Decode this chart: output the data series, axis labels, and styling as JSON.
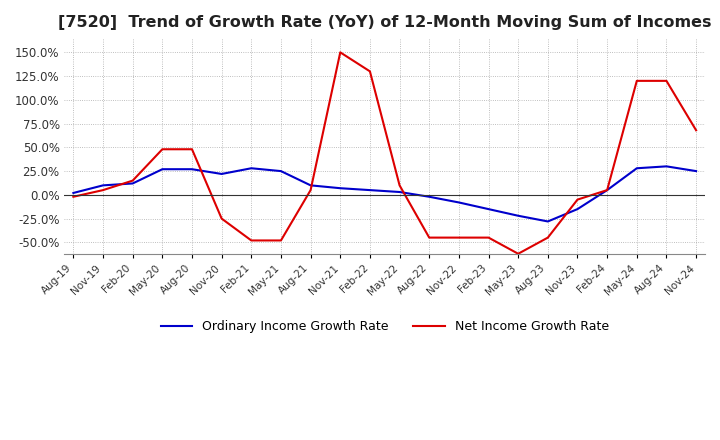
{
  "title": "[7520]  Trend of Growth Rate (YoY) of 12-Month Moving Sum of Incomes",
  "title_fontsize": 11.5,
  "ylim": [
    -62,
    165
  ],
  "yticks": [
    -50,
    -25,
    0,
    25,
    50,
    75,
    100,
    125,
    150
  ],
  "background_color": "#ffffff",
  "grid_color": "#aaaaaa",
  "ordinary_color": "#0000cc",
  "net_color": "#dd0000",
  "legend_labels": [
    "Ordinary Income Growth Rate",
    "Net Income Growth Rate"
  ],
  "x_labels": [
    "Aug-19",
    "Nov-19",
    "Feb-20",
    "May-20",
    "Aug-20",
    "Nov-20",
    "Feb-21",
    "May-21",
    "Aug-21",
    "Nov-21",
    "Feb-22",
    "May-22",
    "Aug-22",
    "Nov-22",
    "Feb-23",
    "May-23",
    "Aug-23",
    "Nov-23",
    "Feb-24",
    "May-24",
    "Aug-24",
    "Nov-24"
  ],
  "ordinary_income": [
    2,
    10,
    12,
    27,
    27,
    22,
    28,
    25,
    10,
    7,
    5,
    3,
    -2,
    -8,
    -15,
    -22,
    -28,
    -15,
    5,
    28,
    30,
    25
  ],
  "net_income": [
    -2,
    5,
    15,
    48,
    48,
    -25,
    -48,
    -48,
    5,
    150,
    130,
    10,
    -45,
    -45,
    -45,
    -62,
    -45,
    -5,
    5,
    120,
    120,
    68
  ]
}
